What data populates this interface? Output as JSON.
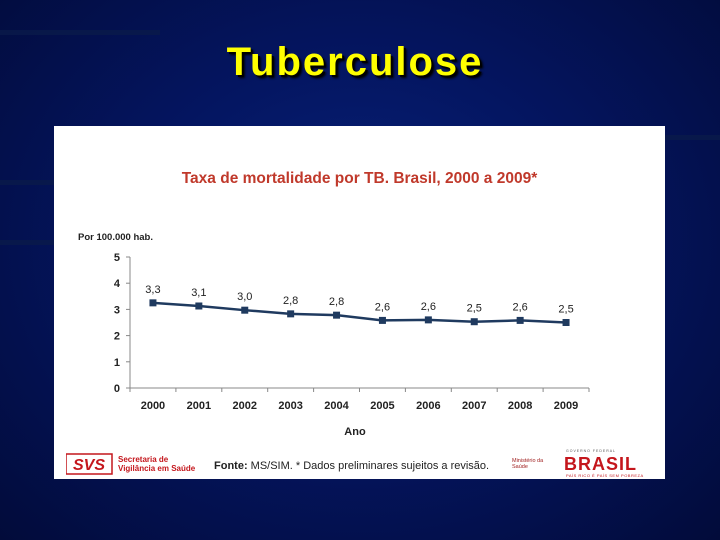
{
  "slide": {
    "title": "Tuberculose"
  },
  "chart_data": {
    "type": "line",
    "title": "Taxa de mortalidade por TB. Brasil, 2000 a 2009*",
    "ylabel": "Por 100.000 hab.",
    "xlabel": "Ano",
    "categories": [
      "2000",
      "2001",
      "2002",
      "2003",
      "2004",
      "2005",
      "2006",
      "2007",
      "2008",
      "2009"
    ],
    "values": [
      3.25,
      3.13,
      2.97,
      2.83,
      2.78,
      2.58,
      2.6,
      2.53,
      2.58,
      2.5
    ],
    "data_labels": [
      "3,3",
      "3,1",
      "3,0",
      "2,8",
      "2,8",
      "2,6",
      "2,6",
      "2,5",
      "2,6",
      "2,5"
    ],
    "y_ticks": [
      "0",
      "1",
      "2",
      "3",
      "4",
      "5"
    ],
    "ylim": [
      0,
      5
    ],
    "grid": false,
    "legend": "none",
    "marker": "square",
    "series_color": "#1f3a5f"
  },
  "footer": {
    "svs_mark": "SVS",
    "svs_line1": "Secretaria de",
    "svs_line2": "Vigilância em Saúde",
    "fonte_label": "Fonte:",
    "fonte_text": " MS/SIM. * Dados preliminares sujeitos a revisão.",
    "ministerio_line1": "Ministério da",
    "ministerio_line2": "Saúde",
    "brasil_logo": "BRASIL",
    "brasil_tagline": "PAÍS RICO É PAÍS SEM POBREZA",
    "brasil_top_text": "GOVERNO FEDERAL"
  }
}
